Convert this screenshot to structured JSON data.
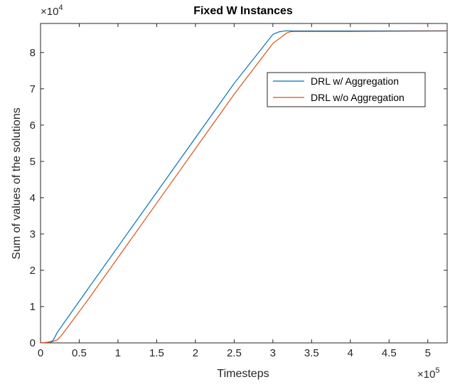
{
  "chart_data": {
    "type": "line",
    "title": "Fixed W Instances",
    "xlabel": "Timesteps",
    "ylabel": "Sum of values of the solutions",
    "x_multiplier": "×10",
    "x_multiplier_exp": "5",
    "y_multiplier": "×10",
    "y_multiplier_exp": "4",
    "xlim": [
      0,
      525000
    ],
    "ylim": [
      0,
      88000
    ],
    "xticks": [
      0,
      50000,
      100000,
      150000,
      200000,
      250000,
      300000,
      350000,
      400000,
      450000,
      500000
    ],
    "xtick_labels": [
      "0",
      "0.5",
      "1",
      "1.5",
      "2",
      "2.5",
      "3",
      "3.5",
      "4",
      "4.5",
      "5"
    ],
    "yticks": [
      0,
      10000,
      20000,
      30000,
      40000,
      50000,
      60000,
      70000,
      80000
    ],
    "ytick_labels": [
      "0",
      "1",
      "2",
      "3",
      "4",
      "5",
      "6",
      "7",
      "8"
    ],
    "grid": false,
    "legend_position": "upper-right (inside)",
    "series": [
      {
        "name": "DRL w/ Aggregation",
        "color": "#0072BD",
        "x": [
          0,
          10000,
          16000,
          22000,
          60000,
          100000,
          150000,
          200000,
          250000,
          300000,
          308000,
          314000,
          318000,
          330000,
          400000,
          525000
        ],
        "y": [
          0,
          150,
          600,
          3000,
          14500,
          26500,
          41500,
          56500,
          71500,
          85000,
          85700,
          85900,
          85950,
          85950,
          85950,
          86000
        ]
      },
      {
        "name": "DRL w/o Aggregation",
        "color": "#D95319",
        "x": [
          0,
          15000,
          22000,
          28000,
          60000,
          100000,
          150000,
          200000,
          250000,
          300000,
          318000,
          323000,
          327000,
          340000,
          400000,
          525000
        ],
        "y": [
          0,
          300,
          900,
          2300,
          11500,
          23500,
          38500,
          53500,
          68500,
          82500,
          85400,
          85750,
          85800,
          85800,
          85800,
          85900
        ]
      }
    ]
  }
}
